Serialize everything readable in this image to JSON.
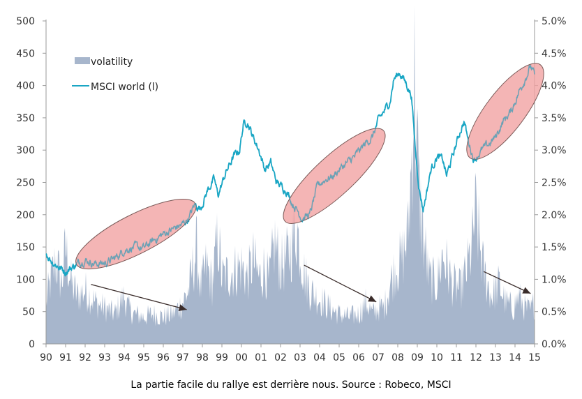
{
  "caption": "La partie facile du rallye est derrière nous. Source : Robeco, MSCI",
  "colors": {
    "volatility": "#a7b6cc",
    "msci": "#1aa6c4",
    "ellipse_fill": "#f1a0a0",
    "ellipse_stroke": "#7a5a58",
    "arrow": "#3a2c2a",
    "axis": "#999999"
  },
  "chart_data": {
    "type": "area",
    "title": "",
    "x_ticks": [
      "90",
      "91",
      "92",
      "93",
      "94",
      "95",
      "96",
      "97",
      "98",
      "99",
      "00",
      "01",
      "02",
      "03",
      "04",
      "05",
      "06",
      "07",
      "08",
      "09",
      "10",
      "11",
      "12",
      "13",
      "14",
      "15"
    ],
    "y_left": {
      "range": [
        0,
        500
      ],
      "ticks": [
        "0",
        "50",
        "100",
        "150",
        "200",
        "250",
        "300",
        "350",
        "400",
        "450",
        "500"
      ]
    },
    "y_right": {
      "range": [
        0,
        5
      ],
      "ticks": [
        "0.0%",
        "0.5%",
        "1.0%",
        "1.5%",
        "2.0%",
        "2.5%",
        "3.0%",
        "3.5%",
        "4.0%",
        "4.5%",
        "5.0%"
      ]
    },
    "legend": {
      "placement": "top-left",
      "entries": [
        "volatility",
        "MSCI world (l)"
      ]
    },
    "series": [
      {
        "name": "MSCI world (l)",
        "kind": "line",
        "axis": "left",
        "x": [
          1990.0,
          1990.3,
          1990.7,
          1991.0,
          1991.4,
          1991.8,
          1992.0,
          1992.5,
          1993.0,
          1993.5,
          1994.0,
          1994.5,
          1995.0,
          1995.5,
          1996.0,
          1996.5,
          1997.0,
          1997.3,
          1997.6,
          1997.9,
          1998.3,
          1998.6,
          1998.8,
          1999.2,
          1999.6,
          1999.9,
          2000.1,
          2000.3,
          2000.6,
          2000.9,
          2001.2,
          2001.5,
          2001.8,
          2002.0,
          2002.3,
          2002.6,
          2002.9,
          2003.1,
          2003.5,
          2003.9,
          2004.3,
          2004.7,
          2005.0,
          2005.4,
          2005.8,
          2006.2,
          2006.4,
          2006.7,
          2007.0,
          2007.3,
          2007.6,
          2007.8,
          2008.1,
          2008.4,
          2008.7,
          2008.9,
          2009.1,
          2009.3,
          2009.7,
          2010.0,
          2010.3,
          2010.5,
          2010.9,
          2011.2,
          2011.4,
          2011.6,
          2011.9,
          2012.3,
          2012.7,
          2013.0,
          2013.4,
          2013.8,
          2014.2,
          2014.5,
          2014.8,
          2015.0
        ],
        "y": [
          140,
          128,
          118,
          112,
          120,
          128,
          130,
          124,
          125,
          132,
          145,
          150,
          148,
          160,
          170,
          178,
          185,
          195,
          215,
          210,
          240,
          255,
          230,
          265,
          290,
          300,
          340,
          345,
          320,
          300,
          270,
          280,
          250,
          245,
          238,
          218,
          205,
          195,
          200,
          245,
          255,
          260,
          270,
          280,
          290,
          305,
          312,
          320,
          345,
          360,
          375,
          410,
          420,
          405,
          385,
          300,
          240,
          208,
          270,
          290,
          285,
          260,
          300,
          330,
          345,
          315,
          285,
          300,
          310,
          320,
          345,
          360,
          390,
          410,
          430,
          415
        ]
      },
      {
        "name": "volatility",
        "kind": "area",
        "axis": "right",
        "x": [
          1990.0,
          1990.2,
          1990.5,
          1990.8,
          1991.0,
          1991.3,
          1991.6,
          1992.0,
          1992.5,
          1993.0,
          1993.5,
          1994.0,
          1994.2,
          1994.5,
          1995.0,
          1995.5,
          1996.0,
          1996.5,
          1997.0,
          1997.3,
          1997.7,
          1997.9,
          1998.2,
          1998.5,
          1998.8,
          1999.0,
          1999.5,
          2000.0,
          2000.3,
          2000.6,
          2000.9,
          2001.2,
          2001.4,
          2001.7,
          2002.0,
          2002.3,
          2002.6,
          2002.8,
          2003.0,
          2003.2,
          2003.5,
          2003.8,
          2004.2,
          2004.5,
          2005.0,
          2005.5,
          2006.0,
          2006.4,
          2006.7,
          2007.0,
          2007.3,
          2007.6,
          2007.9,
          2008.2,
          2008.5,
          2008.7,
          2008.85,
          2008.95,
          2009.1,
          2009.3,
          2009.6,
          2010.0,
          2010.3,
          2010.5,
          2010.8,
          2011.2,
          2011.5,
          2011.8,
          2011.95,
          2012.1,
          2012.4,
          2012.8,
          2013.2,
          2013.5,
          2013.9,
          2014.2,
          2014.5,
          2014.8,
          2015.0
        ],
        "y": [
          0.7,
          1.0,
          1.4,
          1.0,
          1.6,
          1.0,
          0.8,
          0.9,
          0.7,
          0.6,
          0.5,
          0.8,
          0.6,
          0.5,
          0.45,
          0.5,
          0.45,
          0.5,
          0.7,
          0.9,
          1.6,
          0.9,
          1.3,
          1.0,
          1.8,
          1.1,
          1.2,
          1.3,
          1.1,
          1.4,
          1.1,
          1.3,
          1.0,
          1.7,
          1.3,
          1.4,
          1.7,
          2.0,
          1.6,
          1.2,
          0.9,
          0.8,
          0.7,
          0.6,
          0.5,
          0.45,
          0.5,
          0.7,
          0.5,
          0.6,
          0.6,
          1.0,
          1.3,
          1.4,
          1.8,
          3.0,
          4.5,
          3.5,
          2.5,
          1.8,
          1.1,
          1.0,
          1.5,
          1.3,
          1.0,
          0.9,
          1.2,
          1.6,
          2.2,
          1.9,
          1.2,
          0.8,
          1.0,
          0.7,
          0.6,
          0.8,
          0.6,
          0.55,
          0.7
        ]
      }
    ],
    "annotations": {
      "ellipses": [
        {
          "x_from": 1992.0,
          "x_to": 1997.2,
          "y_from": 130,
          "y_to": 210
        },
        {
          "x_from": 2002.6,
          "x_to": 2006.9,
          "y_from": 200,
          "y_to": 320
        },
        {
          "x_from": 2012.0,
          "x_to": 2015.0,
          "y_from": 300,
          "y_to": 420
        }
      ],
      "arrows": [
        {
          "x_from": 1992.3,
          "x_to": 1997.2,
          "y_from": 0.92,
          "y_to": 0.53
        },
        {
          "x_from": 2003.2,
          "x_to": 2006.9,
          "y_from": 1.22,
          "y_to": 0.65
        },
        {
          "x_from": 2012.4,
          "x_to": 2014.8,
          "y_from": 1.12,
          "y_to": 0.78
        }
      ]
    }
  }
}
